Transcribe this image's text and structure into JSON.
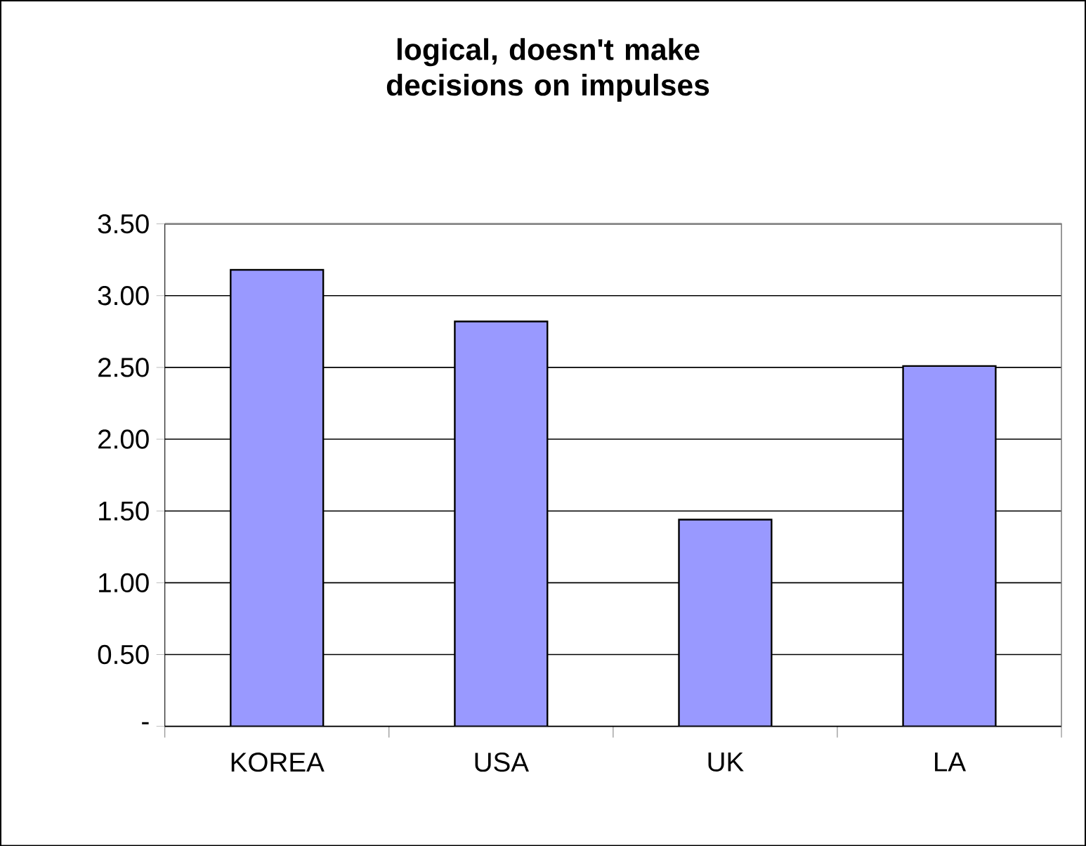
{
  "chart_data": {
    "type": "bar",
    "title": "logical, doesn't make decisions on impulses",
    "categories": [
      "KOREA",
      "USA",
      "UK",
      "LA"
    ],
    "values": [
      3.18,
      2.82,
      1.44,
      2.51
    ],
    "color": "#9999ff",
    "ylim": [
      0,
      3.5
    ],
    "yticks": [
      {
        "value": 0,
        "label": "-"
      },
      {
        "value": 0.5,
        "label": "0.50"
      },
      {
        "value": 1,
        "label": "1.00"
      },
      {
        "value": 1.5,
        "label": "1.50"
      },
      {
        "value": 2,
        "label": "2.00"
      },
      {
        "value": 2.5,
        "label": "2.50"
      },
      {
        "value": 3,
        "label": "3.00"
      },
      {
        "value": 3.5,
        "label": "3.50"
      }
    ],
    "grid": "y"
  }
}
